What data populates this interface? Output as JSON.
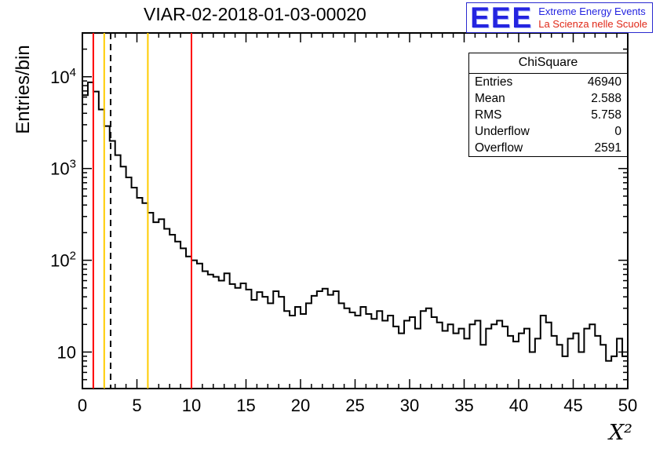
{
  "title": "VIAR-02-2018-01-03-00020",
  "logo": {
    "brand": "EEE",
    "line1": "Extreme Energy Events",
    "line2": "La Scienza nelle Scuole",
    "brand_color": "#2424e0",
    "line1_color": "#2424e0",
    "line2_color": "#e02818",
    "border_color": "#2a2ad0"
  },
  "stats": {
    "title": "ChiSquare",
    "rows": [
      {
        "label": "Entries",
        "value": "46940"
      },
      {
        "label": "Mean",
        "value": "2.588"
      },
      {
        "label": "RMS",
        "value": "5.758"
      },
      {
        "label": "Underflow",
        "value": "0"
      },
      {
        "label": "Overflow",
        "value": "2591"
      }
    ]
  },
  "chart_data": {
    "type": "bar",
    "subtype": "step-histogram",
    "title": "VIAR-02-2018-01-03-00020",
    "xlabel": "X²",
    "ylabel": "Entries/bin",
    "xlim": [
      0,
      50
    ],
    "ylim": [
      4,
      30000
    ],
    "ylog": true,
    "grid": false,
    "line_color": "#000000",
    "bin_start": 0,
    "bin_width": 0.5,
    "values": [
      6300,
      8700,
      6900,
      4400,
      2900,
      2000,
      1400,
      1050,
      800,
      620,
      480,
      420,
      330,
      260,
      280,
      220,
      190,
      160,
      135,
      110,
      100,
      92,
      76,
      70,
      66,
      60,
      72,
      55,
      50,
      56,
      48,
      37,
      45,
      40,
      34,
      46,
      40,
      28,
      25,
      31,
      26,
      34,
      41,
      46,
      49,
      42,
      46,
      34,
      30,
      27,
      25,
      31,
      26,
      23,
      28,
      22,
      25,
      19,
      16,
      22,
      24,
      18,
      28,
      30,
      24,
      21,
      17,
      20,
      16,
      18,
      14,
      20,
      22,
      12,
      18,
      20,
      22,
      19,
      15,
      13,
      16,
      18,
      10,
      14,
      25,
      21,
      15,
      12,
      9,
      14,
      16,
      10,
      18,
      20,
      15,
      12,
      8,
      9,
      14,
      9
    ],
    "xticks": [
      0,
      5,
      10,
      15,
      20,
      25,
      30,
      35,
      40,
      45,
      50
    ],
    "yticks": [
      {
        "value": 10,
        "base": "10",
        "exp": ""
      },
      {
        "value": 100,
        "base": "10",
        "exp": "2"
      },
      {
        "value": 1000,
        "base": "10",
        "exp": "3"
      },
      {
        "value": 10000,
        "base": "10",
        "exp": "4"
      }
    ],
    "markers": [
      {
        "x": 1.0,
        "color": "#ff0000",
        "style": "solid",
        "name": "red-cut-low-line"
      },
      {
        "x": 2.0,
        "color": "#ffcc00",
        "style": "solid",
        "name": "yellow-cut-low-line"
      },
      {
        "x": 2.588,
        "color": "#000000",
        "style": "dashed",
        "name": "mean-dashed-line"
      },
      {
        "x": 6.0,
        "color": "#ffcc00",
        "style": "solid",
        "name": "yellow-cut-high-line"
      },
      {
        "x": 10.0,
        "color": "#ff0000",
        "style": "solid",
        "name": "red-cut-high-line"
      }
    ]
  }
}
